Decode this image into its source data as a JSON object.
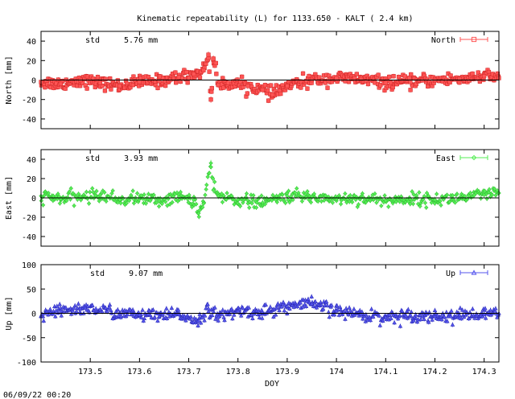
{
  "title": "Kinematic repeatability (L) for 1133.650 - KALT  (  2.4 km)",
  "xlabel": "DOY",
  "footer_timestamp": "06/09/22 00:20",
  "chart_data": [
    {
      "type": "scatter",
      "ylabel": "North [mm]",
      "std_label": "std",
      "std_value": "5.76 mm",
      "legend": "North",
      "legend_position": "top-right",
      "color": "#ff5555",
      "marker": "square",
      "xlim": [
        173.4,
        174.33
      ],
      "ylim": [
        -50,
        50
      ],
      "yticks": [
        -40,
        -20,
        0,
        20,
        40
      ],
      "grid": false,
      "series": [
        {
          "name": "North",
          "x": [
            173.4,
            173.44,
            173.48,
            173.52,
            173.56,
            173.6,
            173.64,
            173.68,
            173.71,
            173.73,
            173.74,
            173.745,
            173.75,
            173.76,
            173.78,
            173.82,
            173.85,
            173.87,
            173.9,
            173.95,
            174.0,
            174.05,
            174.1,
            174.15,
            174.2,
            174.25,
            174.3,
            174.33
          ],
          "y": [
            -2,
            -4,
            0,
            -3,
            -6,
            -2,
            -1,
            3,
            6,
            10,
            26,
            -20,
            22,
            -5,
            -3,
            -6,
            -10,
            -15,
            -6,
            0,
            2,
            1,
            -3,
            -2,
            0,
            1,
            4,
            2
          ]
        }
      ]
    },
    {
      "type": "scatter",
      "ylabel": "East [mm]",
      "std_label": "std",
      "std_value": "3.93 mm",
      "legend": "East",
      "legend_position": "top-right",
      "color": "#55ee55",
      "marker": "diamond",
      "xlim": [
        173.4,
        174.33
      ],
      "ylim": [
        -50,
        50
      ],
      "yticks": [
        -40,
        -20,
        0,
        20,
        40
      ],
      "grid": false,
      "series": [
        {
          "name": "East",
          "x": [
            173.4,
            173.44,
            173.48,
            173.52,
            173.56,
            173.6,
            173.64,
            173.68,
            173.71,
            173.72,
            173.73,
            173.745,
            173.75,
            173.76,
            173.8,
            173.85,
            173.9,
            173.95,
            174.0,
            174.05,
            174.1,
            174.15,
            174.2,
            174.25,
            174.3,
            174.33
          ],
          "y": [
            2,
            -1,
            1,
            3,
            -2,
            0,
            -3,
            1,
            -2,
            -16,
            -6,
            36,
            8,
            2,
            -2,
            -5,
            2,
            1,
            -1,
            0,
            -3,
            -1,
            -2,
            0,
            3,
            5
          ]
        }
      ]
    },
    {
      "type": "scatter",
      "ylabel": "Up [mm]",
      "std_label": "std",
      "std_value": "9.07 mm",
      "legend": "Up",
      "legend_position": "top-right",
      "color": "#5555ee",
      "marker": "triangle",
      "xlim": [
        173.4,
        174.33
      ],
      "ylim": [
        -100,
        100
      ],
      "yticks": [
        -100,
        -50,
        0,
        50,
        100
      ],
      "xticks": [
        173.5,
        173.6,
        173.7,
        173.8,
        173.9,
        174,
        174.1,
        174.2,
        174.3
      ],
      "xticklabels": [
        "173.5",
        "173.6",
        "173.7",
        "173.8",
        "173.9",
        "174",
        "174.1",
        "174.2",
        "174.3"
      ],
      "grid": false,
      "series": [
        {
          "name": "Up",
          "x": [
            173.4,
            173.44,
            173.48,
            173.52,
            173.56,
            173.6,
            173.64,
            173.68,
            173.72,
            173.74,
            173.76,
            173.8,
            173.85,
            173.9,
            173.95,
            174.0,
            174.05,
            174.1,
            174.15,
            174.2,
            174.25,
            174.3,
            174.33
          ],
          "y": [
            -5,
            5,
            10,
            8,
            0,
            -3,
            -6,
            -2,
            -15,
            10,
            -8,
            5,
            2,
            15,
            20,
            5,
            -2,
            -8,
            -3,
            -6,
            -4,
            -2,
            0
          ]
        }
      ]
    }
  ]
}
